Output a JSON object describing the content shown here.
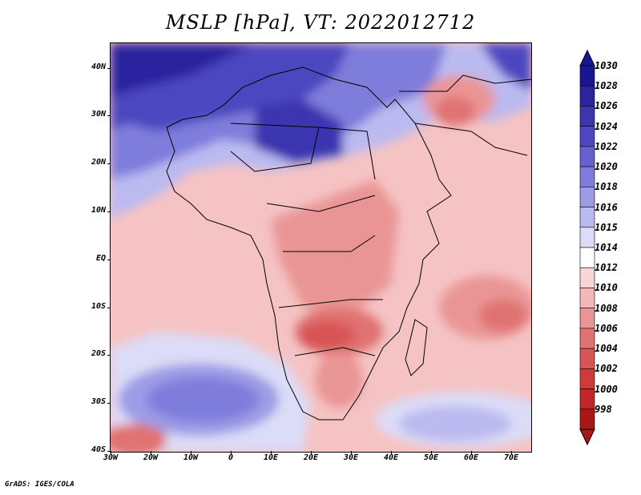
{
  "title": "MSLP [hPa], VT: 2022012712",
  "credit": "GrADS: IGES/COLA",
  "lat_labels": [
    "40N",
    "30N",
    "20N",
    "10N",
    "EQ",
    "10S",
    "20S",
    "30S",
    "40S"
  ],
  "lon_labels": [
    "30W",
    "20W",
    "10W",
    "0",
    "10E",
    "20E",
    "30E",
    "40E",
    "50E",
    "60E",
    "70E"
  ],
  "colorbar": {
    "levels": [
      "1030",
      "1028",
      "1026",
      "1024",
      "1022",
      "1020",
      "1018",
      "1016",
      "1015",
      "1014",
      "1012",
      "1010",
      "1008",
      "1006",
      "1004",
      "1002",
      "1000",
      "998"
    ],
    "colors": [
      "#1a1590",
      "#2a249f",
      "#3b35b0",
      "#4c47c0",
      "#6562d0",
      "#7f7ddc",
      "#9c9be6",
      "#bbbaf0",
      "#dcdcf8",
      "#ffffff",
      "#f9d6d6",
      "#f3b8b8",
      "#ea9595",
      "#e07272",
      "#d85555",
      "#cf3a3a",
      "#c32626",
      "#a81818"
    ]
  },
  "map": {
    "variable": "MSLP",
    "units": "hPa",
    "valid_time": "2022012712",
    "region": "Africa",
    "lon_range": [
      "30W",
      "75E"
    ],
    "lat_range": [
      "40S",
      "45N"
    ]
  }
}
